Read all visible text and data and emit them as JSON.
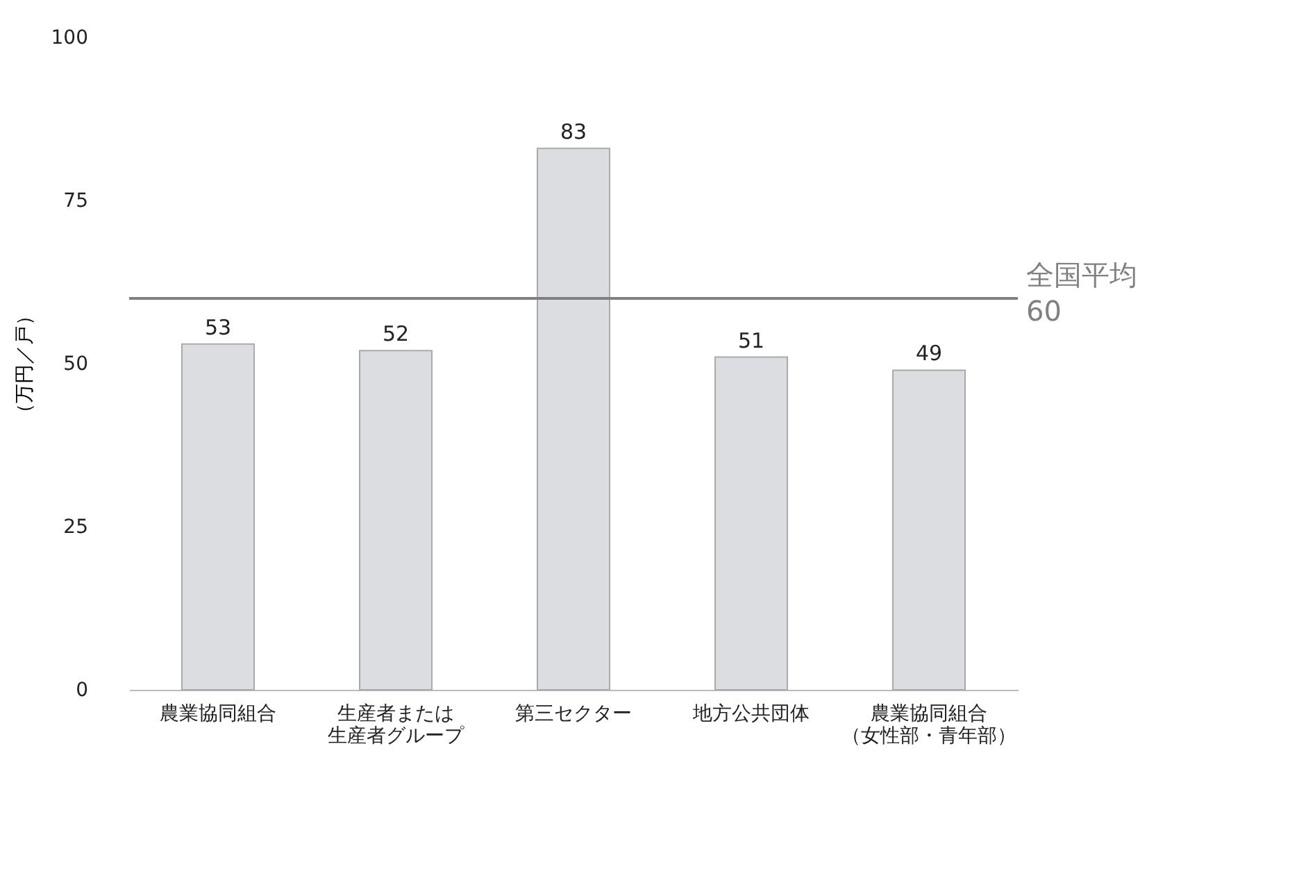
{
  "chart_data": {
    "type": "bar",
    "ylabel": "（万円／戸）",
    "categories": [
      "農業協同組合",
      "生産者または生産者グループ",
      "第三セクター",
      "地方公共団体",
      "農業協同組合（女性部・青年部）"
    ],
    "values": [
      53,
      52,
      83,
      51,
      49
    ],
    "color": "#dcdde0",
    "data_labels": true,
    "ylim": [
      0,
      100
    ],
    "yticks": [
      0,
      25,
      50,
      75,
      100
    ],
    "grid": false,
    "ref_lines": [
      {
        "axis": "y",
        "value": 60,
        "label": "全国平均\n60",
        "color": "#808080"
      }
    ]
  }
}
